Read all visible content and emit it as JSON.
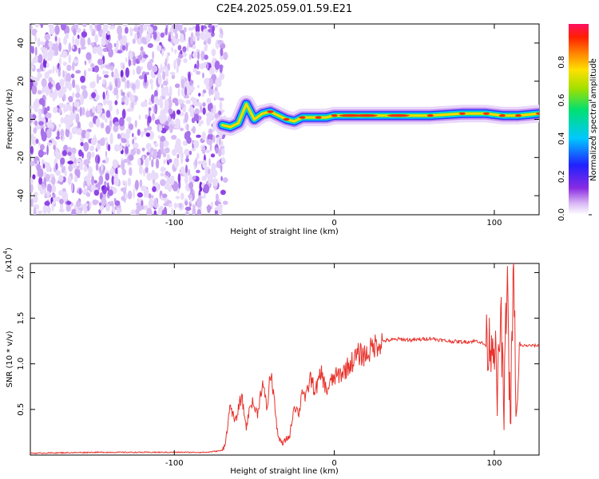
{
  "title": "C2E4.2025.059.01.59.E21",
  "chart_data": [
    {
      "type": "heatmap",
      "title": "C2E4.2025.059.01.59.E21",
      "xlabel": "Height of straight line (km)",
      "ylabel": "Frequency (Hz)",
      "xlim": [
        -190,
        128
      ],
      "ylim": [
        -50,
        50
      ],
      "xticks": [
        -100,
        0,
        100
      ],
      "yticks": [
        -40,
        -20,
        0,
        20,
        40
      ],
      "grid": false,
      "colorbar": {
        "label": "Normalized spectral amplitude",
        "range": [
          0,
          1
        ],
        "ticks": [
          0.0,
          0.2,
          0.4,
          0.6,
          0.8
        ],
        "colormap": [
          "#ffffff",
          "#cfa8f0",
          "#8a2be2",
          "#2020ff",
          "#00c8ff",
          "#00e070",
          "#a0e000",
          "#ffe000",
          "#ff8000",
          "#ff2000",
          "#ff1060"
        ]
      },
      "noise_region": {
        "x": [
          -190,
          -72
        ],
        "y": [
          -50,
          50
        ],
        "level": 0.15
      },
      "ridge": [
        {
          "x": -70,
          "y": -3
        },
        {
          "x": -65,
          "y": -4
        },
        {
          "x": -60,
          "y": -2
        },
        {
          "x": -55,
          "y": 8
        },
        {
          "x": -50,
          "y": 0
        },
        {
          "x": -45,
          "y": 3
        },
        {
          "x": -40,
          "y": 4
        },
        {
          "x": -35,
          "y": 2
        },
        {
          "x": -30,
          "y": 0
        },
        {
          "x": -25,
          "y": -1
        },
        {
          "x": -20,
          "y": 1
        },
        {
          "x": -15,
          "y": 1
        },
        {
          "x": -10,
          "y": 1
        },
        {
          "x": -5,
          "y": 1
        },
        {
          "x": 0,
          "y": 2
        },
        {
          "x": 10,
          "y": 2
        },
        {
          "x": 20,
          "y": 2
        },
        {
          "x": 40,
          "y": 2
        },
        {
          "x": 60,
          "y": 2
        },
        {
          "x": 80,
          "y": 3
        },
        {
          "x": 95,
          "y": 3
        },
        {
          "x": 105,
          "y": 2
        },
        {
          "x": 115,
          "y": 2
        },
        {
          "x": 128,
          "y": 3
        }
      ]
    },
    {
      "type": "line",
      "xlabel": "Height of straight line (km)",
      "ylabel": "SNR (10 * v/v)",
      "y_multiplier_label": "(x10",
      "y_multiplier_exp": "4",
      "xlim": [
        -190,
        128
      ],
      "ylim": [
        0,
        2.1
      ],
      "xticks": [
        -100,
        0,
        100
      ],
      "yticks": [
        0.5,
        1.0,
        1.5,
        2.0
      ],
      "color": "#e8322c",
      "grid": false,
      "series": [
        {
          "x": [
            -190,
            -150,
            -110,
            -80,
            -70,
            -68,
            -65,
            -62,
            -58,
            -55,
            -52,
            -48,
            -45,
            -42,
            -40,
            -38,
            -36,
            -34,
            -32,
            -30,
            -28,
            -25,
            -22,
            -20,
            -18,
            -15,
            -12,
            -10,
            -8,
            -5,
            -2,
            0,
            5,
            10,
            15,
            20,
            25,
            30,
            40,
            50,
            60,
            70,
            80,
            90,
            95,
            100,
            102,
            104,
            106,
            108,
            110,
            112,
            114,
            116,
            120,
            128
          ],
          "y": [
            0.02,
            0.03,
            0.03,
            0.03,
            0.05,
            0.15,
            0.55,
            0.35,
            0.65,
            0.3,
            0.6,
            0.45,
            0.8,
            0.5,
            0.9,
            0.7,
            0.3,
            0.15,
            0.12,
            0.18,
            0.2,
            0.55,
            0.45,
            0.75,
            0.6,
            0.85,
            0.7,
            0.8,
            0.9,
            0.7,
            0.8,
            0.85,
            0.9,
            1.0,
            1.1,
            1.1,
            1.2,
            1.25,
            1.27,
            1.26,
            1.28,
            1.25,
            1.24,
            1.25,
            1.2,
            1.3,
            0.6,
            1.6,
            0.4,
            2.05,
            0.3,
            2.0,
            0.25,
            1.2,
            1.2,
            1.2
          ]
        }
      ]
    }
  ]
}
